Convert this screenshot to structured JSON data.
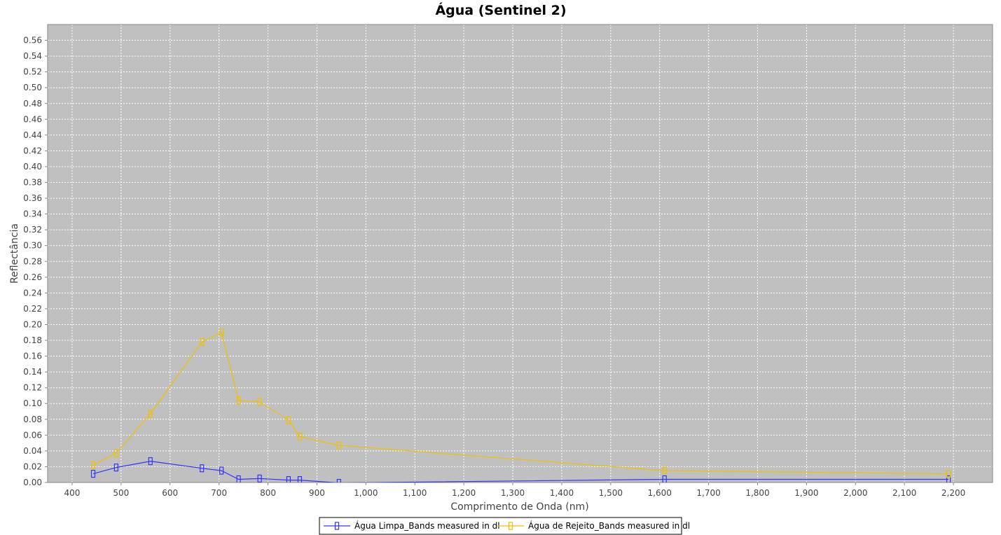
{
  "chart_data": {
    "type": "line",
    "title": "Água (Sentinel 2)",
    "xlabel": "Comprimento de Onda (nm)",
    "ylabel": "Reflectância",
    "xlim": [
      350,
      2280
    ],
    "ylim": [
      0,
      0.58
    ],
    "x_ticks": [
      "400",
      "500",
      "600",
      "700",
      "800",
      "900",
      "1,000",
      "1,100",
      "1,200",
      "1,300",
      "1,400",
      "1,500",
      "1,600",
      "1,700",
      "1,800",
      "1,900",
      "2,000",
      "2,100",
      "2,200"
    ],
    "x_tick_values": [
      400,
      500,
      600,
      700,
      800,
      900,
      1000,
      1100,
      1200,
      1300,
      1400,
      1500,
      1600,
      1700,
      1800,
      1900,
      2000,
      2100,
      2200
    ],
    "y_ticks": [
      "0.00",
      "0.02",
      "0.04",
      "0.06",
      "0.08",
      "0.10",
      "0.12",
      "0.14",
      "0.16",
      "0.18",
      "0.20",
      "0.22",
      "0.24",
      "0.26",
      "0.28",
      "0.30",
      "0.32",
      "0.34",
      "0.36",
      "0.38",
      "0.40",
      "0.42",
      "0.44",
      "0.46",
      "0.48",
      "0.50",
      "0.52",
      "0.54",
      "0.56"
    ],
    "y_tick_values": [
      0,
      0.02,
      0.04,
      0.06,
      0.08,
      0.1,
      0.12,
      0.14,
      0.16,
      0.18,
      0.2,
      0.22,
      0.24,
      0.26,
      0.28,
      0.3,
      0.32,
      0.34,
      0.36,
      0.38,
      0.4,
      0.42,
      0.44,
      0.46,
      0.48,
      0.5,
      0.52,
      0.54,
      0.56
    ],
    "grid": true,
    "legend_position": "bottom",
    "plot_background": "#c0c0c0",
    "series": [
      {
        "name": "Água Limpa_Bands measured in dl",
        "color": "#3333ff",
        "points": [
          [
            443,
            0.011
          ],
          [
            490,
            0.019
          ],
          [
            560,
            0.027
          ],
          [
            665,
            0.018
          ],
          [
            705,
            0.015
          ],
          [
            740,
            0.004
          ],
          [
            783,
            0.005
          ],
          [
            842,
            0.003
          ],
          [
            865,
            0.003
          ],
          [
            945,
            -0.0005
          ],
          [
            1610,
            0.004
          ],
          [
            2190,
            0.004
          ]
        ]
      },
      {
        "name": "Água de Rejeito_Bands measured in dl",
        "color": "#f0c000",
        "points": [
          [
            443,
            0.022
          ],
          [
            490,
            0.037
          ],
          [
            560,
            0.087
          ],
          [
            665,
            0.178
          ],
          [
            705,
            0.19
          ],
          [
            740,
            0.104
          ],
          [
            783,
            0.102
          ],
          [
            842,
            0.079
          ],
          [
            865,
            0.058
          ],
          [
            945,
            0.047
          ],
          [
            1610,
            0.015
          ],
          [
            2190,
            0.011
          ]
        ]
      }
    ]
  }
}
